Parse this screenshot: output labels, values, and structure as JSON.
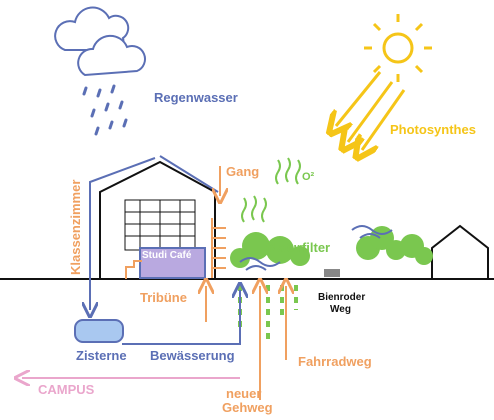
{
  "labels": {
    "regenwasser": "Regenwasser",
    "photosynthes": "Photosynthes",
    "klassenzimmer": "Klassenzimmer",
    "gang": "Gang",
    "o2": "O²",
    "naturfilter": "Naturfilter",
    "studi_cafe": "Studi Café",
    "tribuene": "Tribüne",
    "bienroder_weg": [
      "Bienroder",
      "Weg"
    ],
    "zisterne": "Zisterne",
    "bewaesserung": "Bewässerung",
    "fahrradweg": "Fahrradweg",
    "campus": "CAMPUS",
    "neuer_gehweg": [
      "neuer",
      "Gehweg"
    ]
  }
}
